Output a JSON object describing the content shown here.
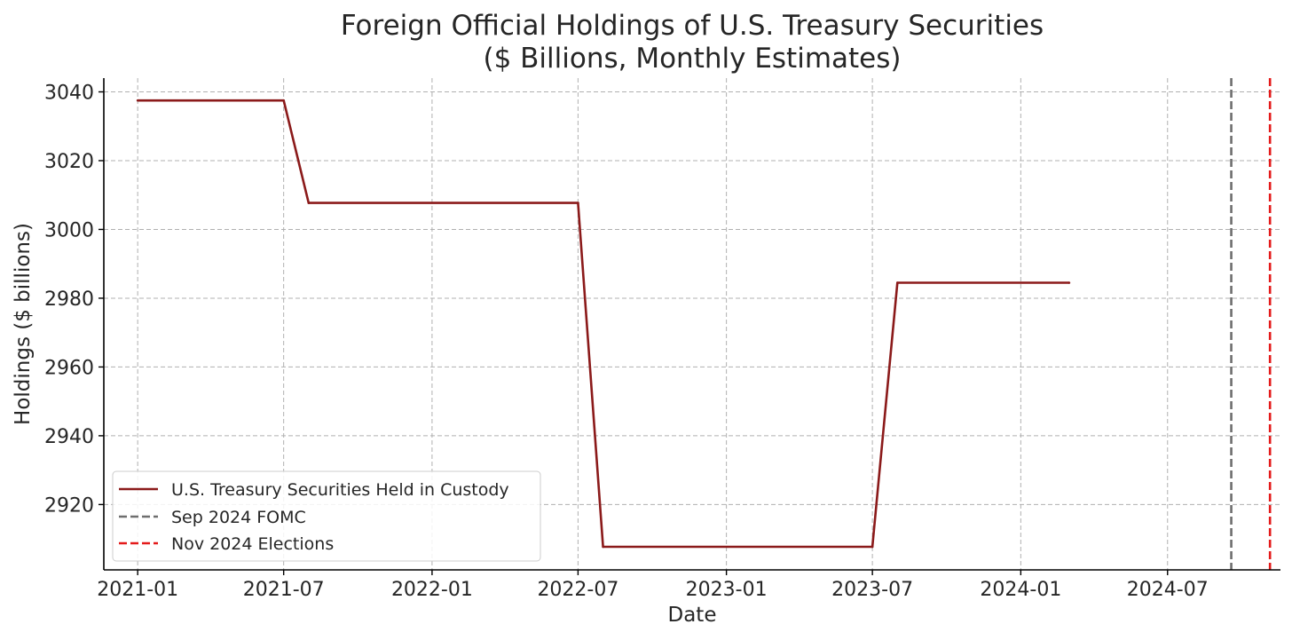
{
  "chart_data": {
    "type": "line",
    "title": "Foreign Official Holdings of U.S. Treasury Securities",
    "subtitle": "($ Billions, Monthly Estimates)",
    "xlabel": "Date",
    "ylabel": "Holdings ($ billions)",
    "xlim": [
      "2020-11-20",
      "2024-11-18"
    ],
    "ylim": [
      2901,
      3044
    ],
    "grid": true,
    "legend_placement": "lower-left",
    "x_ticks": [
      "2021-01",
      "2021-07",
      "2022-01",
      "2022-07",
      "2023-01",
      "2023-07",
      "2024-01",
      "2024-07"
    ],
    "y_ticks": [
      2920,
      2940,
      2960,
      2980,
      3000,
      3020,
      3040
    ],
    "series": [
      {
        "name": "U.S. Treasury Securities Held in Custody",
        "color": "#8b1a1a",
        "points": [
          {
            "x": "2021-01-01",
            "y": 3037.5
          },
          {
            "x": "2021-07-01",
            "y": 3037.5
          },
          {
            "x": "2021-08-01",
            "y": 3007.7
          },
          {
            "x": "2022-07-01",
            "y": 3007.7
          },
          {
            "x": "2022-08-01",
            "y": 2907.7
          },
          {
            "x": "2023-07-01",
            "y": 2907.7
          },
          {
            "x": "2023-08-01",
            "y": 2984.5
          },
          {
            "x": "2024-03-01",
            "y": 2984.5
          }
        ]
      }
    ],
    "vlines": [
      {
        "name": "Sep 2024 FOMC",
        "x": "2024-09-18",
        "color": "#6e6e6e",
        "style": "dashed"
      },
      {
        "name": "Nov 2024 Elections",
        "x": "2024-11-05",
        "color": "#e41a1a",
        "style": "dashed"
      }
    ]
  }
}
